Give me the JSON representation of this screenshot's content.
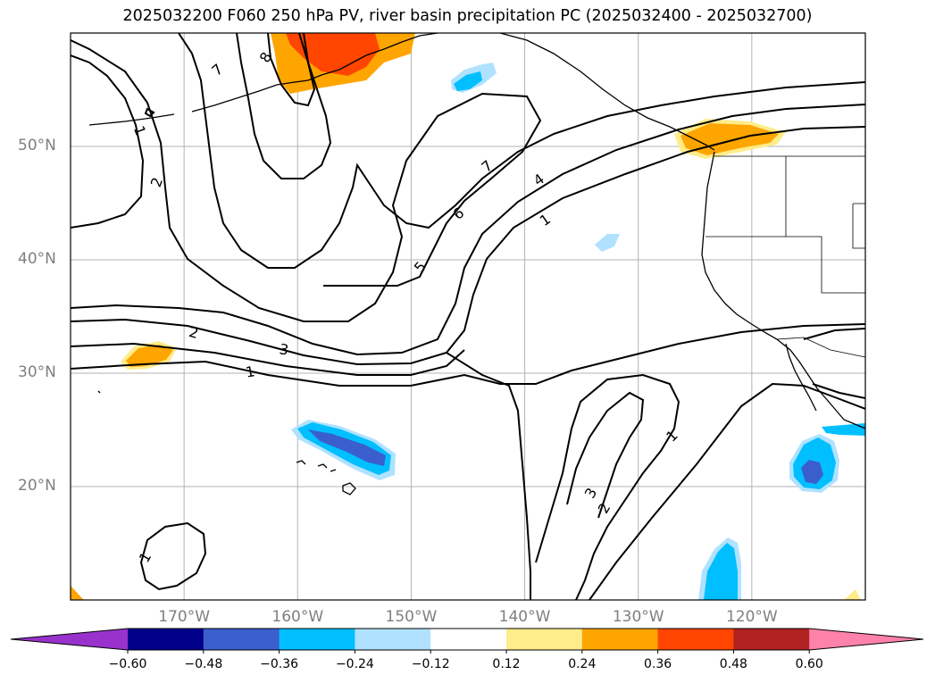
{
  "title": "2025032200 F060 250 hPa PV, river basin precipitation PC (2025032400 - 2025032700)",
  "lat_labels": [
    {
      "text": "50°N",
      "value": 50
    },
    {
      "text": "40°N",
      "value": 40
    },
    {
      "text": "30°N",
      "value": 30
    },
    {
      "text": "20°N",
      "value": 20
    }
  ],
  "lon_labels": [
    {
      "text": "170°W",
      "value": -170
    },
    {
      "text": "160°W",
      "value": -160
    },
    {
      "text": "150°W",
      "value": -150
    },
    {
      "text": "140°W",
      "value": -140
    },
    {
      "text": "130°W",
      "value": -130
    },
    {
      "text": "120°W",
      "value": -120
    }
  ],
  "map_extent": {
    "lon_min": -180,
    "lon_max": -110,
    "lat_min": 10,
    "lat_max": 60
  },
  "colorbar": {
    "ticks": [
      "−0.60",
      "−0.48",
      "−0.36",
      "−0.24",
      "−0.12",
      "0.12",
      "0.24",
      "0.36",
      "0.48",
      "0.60"
    ],
    "colors": [
      "#9932cc",
      "#00008b",
      "#3a5fcd",
      "#00bfff",
      "#b0e2ff",
      "#ffffff",
      "#ffec8b",
      "#ffa500",
      "#ff4500",
      "#b22222",
      "#ff82ab"
    ]
  },
  "contour_labels": [
    "7",
    "8",
    "1",
    "2",
    "7",
    "4",
    "6",
    "1",
    "5",
    "2",
    "3",
    "1",
    "1",
    "3",
    "2",
    "1"
  ],
  "shading_colors": {
    "orange": "#ffa500",
    "red_orange": "#ff4500",
    "light_yellow": "#ffec8b",
    "deep_sky_blue": "#00bfff",
    "light_blue": "#b0e2ff",
    "royal_blue": "#3a5fcd"
  }
}
